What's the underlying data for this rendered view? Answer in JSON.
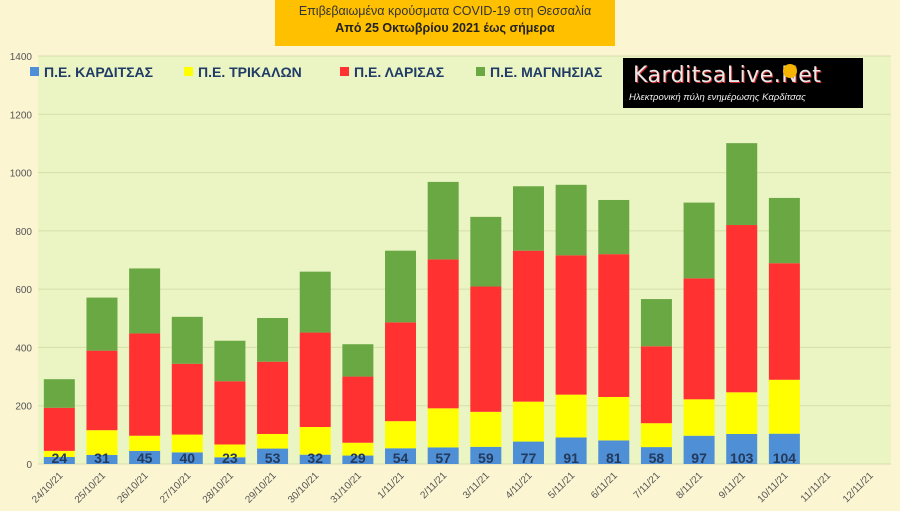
{
  "title": {
    "line1": "Επιβεβαιωμένα κρούσματα COVID-19 στη Θεσσαλία",
    "line2": "Από 25 Οκτωβρίου 2021 έως σήμερα"
  },
  "logo": {
    "name": "KarditsaLive.Net",
    "tagline": "Ηλεκτρονική πύλη ενημέρωσης Καρδίτσας"
  },
  "chart_data": {
    "type": "bar",
    "stacked": true,
    "categories": [
      "24/10/21",
      "25/10/21",
      "26/10/21",
      "27/10/21",
      "28/10/21",
      "29/10/21",
      "30/10/21",
      "31/10/21",
      "1/11/21",
      "2/11/21",
      "3/11/21",
      "4/11/21",
      "5/11/21",
      "6/11/21",
      "7/11/21",
      "8/11/21",
      "9/11/21",
      "10/11/21",
      "11/11/21",
      "12/11/21"
    ],
    "ylim": [
      0,
      1400
    ],
    "yticks": [
      0,
      200,
      400,
      600,
      800,
      1000,
      1200,
      1400
    ],
    "grid": true,
    "legend_position": "top-left",
    "series": [
      {
        "name": "Π.Ε. ΚΑΡΔΙΤΣΑΣ",
        "color": "#4f8fd6",
        "values": [
          24,
          31,
          45,
          40,
          23,
          53,
          32,
          29,
          54,
          57,
          59,
          77,
          91,
          81,
          58,
          97,
          103,
          104,
          null,
          null
        ]
      },
      {
        "name": "Π.Ε. ΤΡΙΚΑΛΩΝ",
        "color": "#ffff00",
        "values": [
          21,
          85,
          52,
          61,
          44,
          50,
          95,
          44,
          93,
          134,
          120,
          137,
          147,
          149,
          82,
          125,
          143,
          185,
          null,
          null
        ]
      },
      {
        "name": "Π.Ε. ΛΑΡΙΣΑΣ",
        "color": "#ff3131",
        "values": [
          148,
          273,
          351,
          243,
          217,
          248,
          324,
          227,
          339,
          511,
          430,
          518,
          478,
          490,
          264,
          415,
          574,
          400,
          null,
          null
        ]
      },
      {
        "name": "Π.Ε. ΜΑΓΝΗΣΙΑΣ",
        "color": "#6aa843",
        "values": [
          98,
          182,
          223,
          161,
          139,
          150,
          209,
          111,
          246,
          266,
          239,
          221,
          242,
          186,
          162,
          260,
          281,
          224,
          null,
          null
        ]
      }
    ],
    "data_labels_series": "Π.Ε. ΚΑΡΔΙΤΣΑΣ",
    "data_labels": [
      "24",
      "31",
      "45",
      "40",
      "23",
      "53",
      "32",
      "29",
      "54",
      "57",
      "59",
      "77",
      "91",
      "81",
      "58",
      "97",
      "103",
      "104"
    ]
  }
}
